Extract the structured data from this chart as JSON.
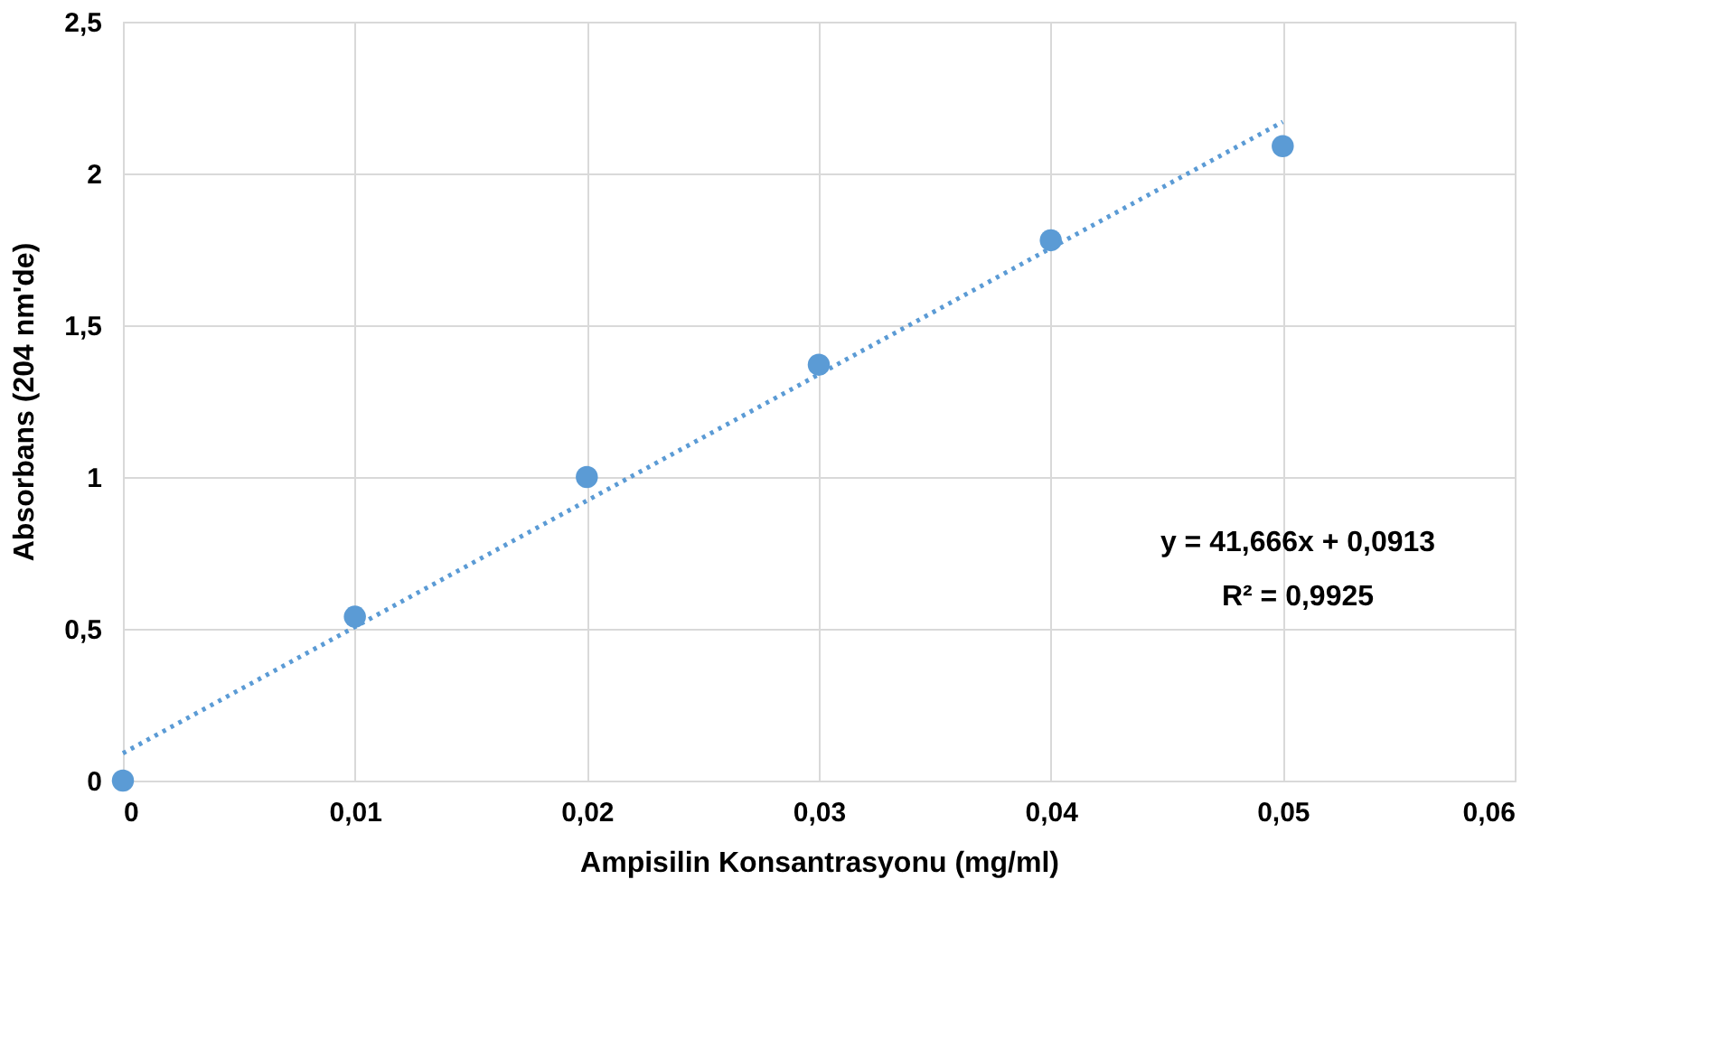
{
  "chart_data": {
    "type": "scatter",
    "xlabel": "Ampisilin Konsantrasyonu  (mg/ml)",
    "ylabel": "Absorbans (204 nm'de)",
    "series": [
      {
        "color": "#5b9bd5",
        "marker": "circle",
        "x": [
          0,
          0.01,
          0.02,
          0.03,
          0.04,
          0.05
        ],
        "values": [
          0.0,
          0.54,
          1.0,
          1.37,
          1.78,
          2.09
        ]
      },
      {
        "type": "line",
        "color": "#5b9bd5",
        "line_style": "dotted",
        "x": [
          0,
          0.05
        ],
        "values": [
          0.09,
          2.17
        ]
      }
    ],
    "xlim": [
      0,
      0.06
    ],
    "ylim": [
      0,
      2.5
    ],
    "xticks": [
      0,
      {
        "value": 0.01,
        "label": "0,01"
      },
      {
        "value": 0.02,
        "label": "0,02"
      },
      {
        "value": 0.03,
        "label": "0,03"
      },
      {
        "value": 0.04,
        "label": "0,04"
      },
      {
        "value": 0.05,
        "label": "0,05"
      },
      {
        "value": 0.06,
        "label": "0,06"
      }
    ],
    "yticks": [
      0,
      {
        "value": 0.5,
        "label": "0,5"
      },
      1,
      {
        "value": 1.5,
        "label": "1,5"
      },
      2,
      {
        "value": 2.5,
        "label": "2,5"
      }
    ],
    "grid": true,
    "annotations": [
      "y = 41,666x + 0,0913",
      "R² = 0,9925"
    ]
  }
}
